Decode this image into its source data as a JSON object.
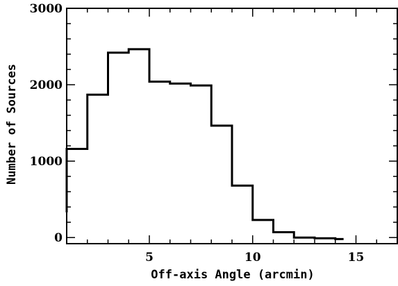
{
  "chart_data": {
    "type": "bar",
    "style": "step-histogram",
    "title": "",
    "xlabel": "Off-axis Angle (arcmin)",
    "ylabel": "Number of Sources",
    "xlim": [
      1,
      17
    ],
    "ylim": [
      -80,
      3000
    ],
    "x_ticks": [
      5,
      10,
      15
    ],
    "y_ticks": [
      0,
      1000,
      2000,
      3000
    ],
    "bin_edges": [
      1,
      2,
      3,
      4,
      5,
      6,
      7,
      8,
      9,
      10,
      11,
      12,
      13,
      14,
      14.4
    ],
    "values": [
      1160,
      1870,
      2420,
      2465,
      2040,
      2015,
      1990,
      1465,
      680,
      230,
      70,
      0,
      -10,
      -20
    ],
    "start_value": 330,
    "grid": false,
    "legend": "none",
    "line_color": "#000000"
  }
}
